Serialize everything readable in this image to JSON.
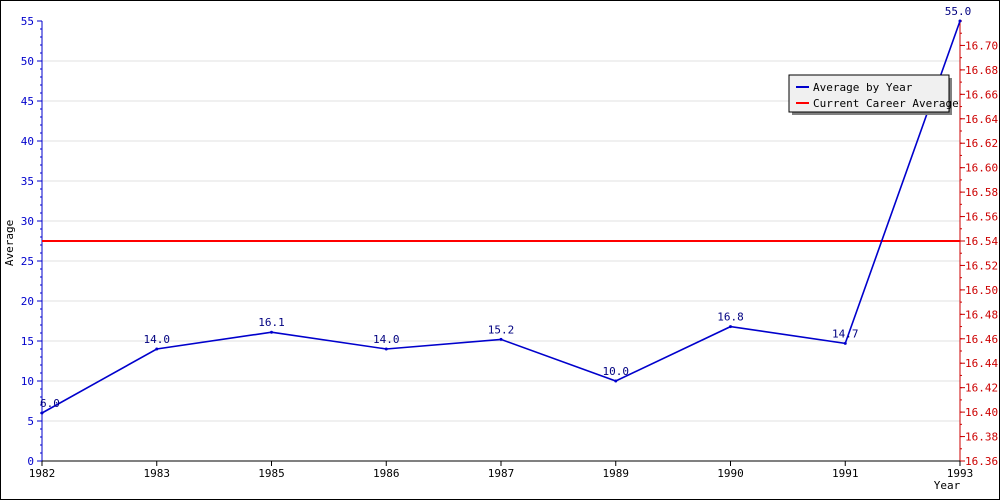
{
  "chart_data": {
    "type": "line",
    "categories": [
      "1982",
      "1983",
      "1985",
      "1986",
      "1987",
      "1989",
      "1990",
      "1991",
      "1993"
    ],
    "series": [
      {
        "name": "Average by Year",
        "axis": "left",
        "color": "#0000cc",
        "values": [
          6.0,
          14.0,
          16.1,
          14.0,
          15.2,
          10.0,
          16.8,
          14.7,
          55.0
        ],
        "labels": [
          "6.0",
          "14.0",
          "16.1",
          "14.0",
          "15.2",
          "10.0",
          "16.8",
          "14.7",
          "55.0"
        ]
      },
      {
        "name": "Current Career Average",
        "axis": "right",
        "color": "#ff0000",
        "value": 16.54
      }
    ],
    "xlabel": "Year",
    "ylabel": "Average",
    "ylim_left": [
      0,
      55
    ],
    "yticks_left": [
      "0",
      "5",
      "10",
      "15",
      "20",
      "25",
      "30",
      "35",
      "40",
      "45",
      "50",
      "55"
    ],
    "ylim_right": [
      16.36,
      16.72
    ],
    "yticks_right": [
      "16.36",
      "16.38",
      "16.40",
      "16.42",
      "16.44",
      "16.46",
      "16.48",
      "16.50",
      "16.52",
      "16.54",
      "16.56",
      "16.58",
      "16.60",
      "16.62",
      "16.64",
      "16.66",
      "16.68",
      "16.70"
    ],
    "grid": true,
    "legend_position": "top-right"
  }
}
